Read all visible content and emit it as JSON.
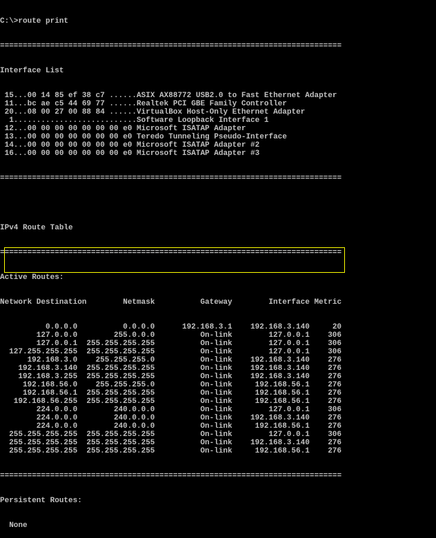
{
  "prompt": "C:\\>route print",
  "divider": "===========================================================================",
  "interface_list": {
    "title": "Interface List",
    "lines": [
      " 15...00 14 85 ef 38 c7 ......ASIX AX88772 USB2.0 to Fast Ethernet Adapter",
      " 11...bc ae c5 44 69 77 ......Realtek PCI GBE Family Controller",
      " 20...08 00 27 00 88 84 ......VirtualBox Host-Only Ethernet Adapter",
      "  1...........................Software Loopback Interface 1",
      " 12...00 00 00 00 00 00 00 e0 Microsoft ISATAP Adapter",
      " 13...00 00 00 00 00 00 00 e0 Teredo Tunneling Pseudo-Interface",
      " 14...00 00 00 00 00 00 00 e0 Microsoft ISATAP Adapter #2",
      " 16...00 00 00 00 00 00 00 e0 Microsoft ISATAP Adapter #3"
    ]
  },
  "route_table": {
    "title": "IPv4 Route Table",
    "active_label": "Active Routes:",
    "headers": [
      "Network Destination",
      "Netmask",
      "Gateway",
      "Interface",
      "Metric"
    ],
    "rows": [
      [
        "0.0.0.0",
        "0.0.0.0",
        "192.168.3.1",
        "192.168.3.140",
        "20"
      ],
      [
        "127.0.0.0",
        "255.0.0.0",
        "On-link",
        "127.0.0.1",
        "306"
      ],
      [
        "127.0.0.1",
        "255.255.255.255",
        "On-link",
        "127.0.0.1",
        "306"
      ],
      [
        "127.255.255.255",
        "255.255.255.255",
        "On-link",
        "127.0.0.1",
        "306"
      ],
      [
        "192.168.3.0",
        "255.255.255.0",
        "On-link",
        "192.168.3.140",
        "276"
      ],
      [
        "192.168.3.140",
        "255.255.255.255",
        "On-link",
        "192.168.3.140",
        "276"
      ],
      [
        "192.168.3.255",
        "255.255.255.255",
        "On-link",
        "192.168.3.140",
        "276"
      ],
      [
        "192.168.56.0",
        "255.255.255.0",
        "On-link",
        "192.168.56.1",
        "276"
      ],
      [
        "192.168.56.1",
        "255.255.255.255",
        "On-link",
        "192.168.56.1",
        "276"
      ],
      [
        "192.168.56.255",
        "255.255.255.255",
        "On-link",
        "192.168.56.1",
        "276"
      ],
      [
        "224.0.0.0",
        "240.0.0.0",
        "On-link",
        "127.0.0.1",
        "306"
      ],
      [
        "224.0.0.0",
        "240.0.0.0",
        "On-link",
        "192.168.3.140",
        "276"
      ],
      [
        "224.0.0.0",
        "240.0.0.0",
        "On-link",
        "192.168.56.1",
        "276"
      ],
      [
        "255.255.255.255",
        "255.255.255.255",
        "On-link",
        "127.0.0.1",
        "306"
      ],
      [
        "255.255.255.255",
        "255.255.255.255",
        "On-link",
        "192.168.3.140",
        "276"
      ],
      [
        "255.255.255.255",
        "255.255.255.255",
        "On-link",
        "192.168.56.1",
        "276"
      ]
    ],
    "highlighted_rows": [
      13,
      14,
      15
    ]
  },
  "persistent": {
    "label": "Persistent Routes:",
    "value": "  None"
  },
  "colors": {
    "text": "#c0c0c0",
    "background": "#000000",
    "highlight": "#ffff00"
  }
}
